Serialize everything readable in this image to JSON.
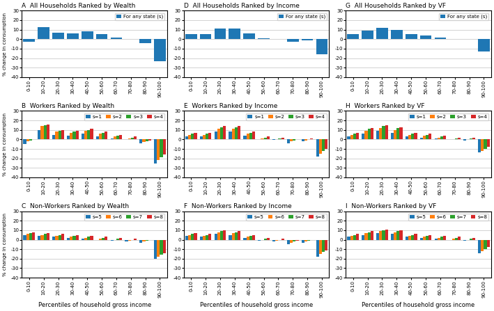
{
  "chart_data": [
    {
      "type": "bar",
      "title": "A  All Households Ranked by Wealth",
      "categories": [
        "0-10",
        "10-20",
        "20-30",
        "30-40",
        "40-50",
        "50-60",
        "60-70",
        "70-80",
        "80-90",
        "90-100"
      ],
      "series": [
        {
          "name": "For any state (s)",
          "values": [
            -3,
            13,
            7,
            6,
            8,
            5,
            2,
            0.5,
            -4,
            -23
          ]
        }
      ],
      "ylabel": "% change in consumption",
      "ylim": [
        -40,
        30
      ],
      "yticks": [
        -40,
        -30,
        -20,
        -10,
        0,
        10,
        20,
        30
      ],
      "grid": true,
      "legend": "upper right"
    },
    {
      "type": "bar",
      "title": "D  All Households Ranked by Income",
      "categories": [
        "0-10",
        "10-20",
        "20-30",
        "30-40",
        "40-50",
        "50-60",
        "60-70",
        "70-80",
        "80-90",
        "90-100"
      ],
      "series": [
        {
          "name": "For any state (s)",
          "values": [
            5,
            5,
            11,
            11,
            6,
            1,
            0.5,
            -3,
            -1,
            -16
          ]
        }
      ],
      "ylim": [
        -40,
        30
      ],
      "yticks": [
        -40,
        -30,
        -20,
        -10,
        0,
        10,
        20,
        30
      ],
      "grid": true,
      "legend": "upper right"
    },
    {
      "type": "bar",
      "title": "G  All Households Ranked by VF",
      "categories": [
        "0-10",
        "10-20",
        "20-30",
        "30-40",
        "40-50",
        "50-60",
        "60-70",
        "70-80",
        "80-90",
        "90-100"
      ],
      "series": [
        {
          "name": "For any state (s)",
          "values": [
            5,
            9,
            12,
            10,
            5,
            4,
            2,
            0.5,
            0,
            -13
          ]
        }
      ],
      "ylim": [
        -40,
        30
      ],
      "yticks": [
        -40,
        -30,
        -20,
        -10,
        0,
        10,
        20,
        30
      ],
      "grid": true,
      "legend": "upper right"
    },
    {
      "type": "bar",
      "title": "B  Workers Ranked by Wealth",
      "categories": [
        "0-10",
        "10-20",
        "20-30",
        "30-40",
        "40-50",
        "50-60",
        "60-70",
        "70-80",
        "80-90",
        "90-100"
      ],
      "series": [
        {
          "name": "s=1",
          "values": [
            -5,
            10,
            5,
            4,
            6,
            3,
            1,
            0.5,
            -4,
            -25
          ]
        },
        {
          "name": "s=2",
          "values": [
            -2,
            14,
            8,
            7,
            9,
            6,
            3,
            1,
            -3,
            -22
          ]
        },
        {
          "name": "s=3",
          "values": [
            -1,
            15,
            9,
            8,
            10,
            7,
            4,
            2,
            -2,
            -19
          ]
        },
        {
          "name": "s=4",
          "values": [
            0,
            16,
            10,
            9,
            11,
            8,
            5,
            3,
            -1,
            -16
          ]
        }
      ],
      "ylabel": "% change in consumption",
      "ylim": [
        -40,
        30
      ],
      "yticks": [
        -40,
        -30,
        -20,
        -10,
        0,
        10,
        20,
        30
      ],
      "grid": true,
      "legend": "upper right"
    },
    {
      "type": "bar",
      "title": "E  Workers Ranked by Income",
      "categories": [
        "0-10",
        "10-20",
        "20-30",
        "30-40",
        "40-50",
        "50-60",
        "60-70",
        "70-80",
        "80-90",
        "90-100"
      ],
      "series": [
        {
          "name": "s=1",
          "values": [
            3,
            3,
            8,
            8,
            4,
            0,
            -0.5,
            -4,
            -2,
            -18
          ]
        },
        {
          "name": "s=2",
          "values": [
            5,
            5,
            11,
            11,
            6,
            1,
            0.5,
            -2,
            -1,
            -15
          ]
        },
        {
          "name": "s=3",
          "values": [
            6,
            6,
            13,
            13,
            7,
            2,
            1,
            -1,
            0,
            -12
          ]
        },
        {
          "name": "s=4",
          "values": [
            7,
            7,
            14,
            14,
            8,
            3,
            2,
            0,
            1,
            -10
          ]
        }
      ],
      "ylim": [
        -40,
        30
      ],
      "yticks": [
        -40,
        -30,
        -20,
        -10,
        0,
        10,
        20,
        30
      ],
      "grid": true,
      "legend": "upper right"
    },
    {
      "type": "bar",
      "title": "H  Workers Ranked by VF",
      "categories": [
        "0-10",
        "10-20",
        "20-30",
        "30-40",
        "40-50",
        "50-60",
        "60-70",
        "70-80",
        "80-90",
        "90-100"
      ],
      "series": [
        {
          "name": "s=1",
          "values": [
            3,
            6,
            9,
            7,
            3,
            2,
            1,
            0,
            -1,
            -14
          ]
        },
        {
          "name": "s=2",
          "values": [
            5,
            9,
            12,
            10,
            5,
            4,
            2,
            0.5,
            0,
            -12
          ]
        },
        {
          "name": "s=3",
          "values": [
            6,
            11,
            14,
            12,
            6,
            5,
            3,
            1,
            1,
            -10
          ]
        },
        {
          "name": "s=4",
          "values": [
            7,
            12,
            15,
            13,
            7,
            6,
            4,
            2,
            2,
            -8
          ]
        }
      ],
      "ylim": [
        -40,
        30
      ],
      "yticks": [
        -40,
        -30,
        -20,
        -10,
        0,
        10,
        20,
        30
      ],
      "grid": true,
      "legend": "upper right"
    },
    {
      "type": "bar",
      "title": "C  Non-Workers Ranked by Wealth",
      "categories": [
        "0-10",
        "10-20",
        "20-30",
        "30-40",
        "40-50",
        "50-60",
        "60-70",
        "70-80",
        "80-90",
        "90-100"
      ],
      "series": [
        {
          "name": "s=5",
          "values": [
            5,
            4,
            3,
            2,
            1,
            0,
            -1,
            -2,
            -3,
            -20
          ]
        },
        {
          "name": "s=6",
          "values": [
            6,
            5,
            4,
            3,
            2,
            1,
            0,
            -1,
            -2,
            -18
          ]
        },
        {
          "name": "s=7",
          "values": [
            7,
            6,
            5,
            4,
            3,
            2,
            1,
            0,
            -1,
            -16
          ]
        },
        {
          "name": "s=8",
          "values": [
            8,
            7,
            6,
            5,
            4,
            3,
            2,
            1,
            0,
            -14
          ]
        }
      ],
      "xlabel": "Percentiles of household gross income",
      "ylabel": "% change in consumption",
      "ylim": [
        -40,
        30
      ],
      "yticks": [
        -40,
        -30,
        -20,
        -10,
        0,
        10,
        20,
        30
      ],
      "grid": true,
      "legend": "upper right"
    },
    {
      "type": "bar",
      "title": "F  Non-Workers Ranked by Income",
      "categories": [
        "0-10",
        "10-20",
        "20-30",
        "30-40",
        "40-50",
        "50-60",
        "60-70",
        "70-80",
        "80-90",
        "90-100"
      ],
      "series": [
        {
          "name": "s=5",
          "values": [
            4,
            3,
            6,
            5,
            2,
            -1,
            -2,
            -5,
            -3,
            -18
          ]
        },
        {
          "name": "s=6",
          "values": [
            5,
            4,
            8,
            7,
            3,
            0,
            -1,
            -3,
            -2,
            -15
          ]
        },
        {
          "name": "s=7",
          "values": [
            6,
            5,
            9,
            8,
            4,
            1,
            0,
            -2,
            -1,
            -13
          ]
        },
        {
          "name": "s=8",
          "values": [
            7,
            6,
            10,
            9,
            5,
            2,
            1,
            -1,
            0,
            -11
          ]
        }
      ],
      "xlabel": "Percentiles of household gross income",
      "ylim": [
        -40,
        30
      ],
      "yticks": [
        -40,
        -30,
        -20,
        -10,
        0,
        10,
        20,
        30
      ],
      "grid": true,
      "legend": "upper right"
    },
    {
      "type": "bar",
      "title": "I  Non-Workers Ranked by VF",
      "categories": [
        "0-10",
        "10-20",
        "20-30",
        "30-40",
        "40-50",
        "50-60",
        "60-70",
        "70-80",
        "80-90",
        "90-100"
      ],
      "series": [
        {
          "name": "s=5",
          "values": [
            3,
            5,
            7,
            6,
            3,
            2,
            1,
            0,
            -1,
            -14
          ]
        },
        {
          "name": "s=6",
          "values": [
            4,
            7,
            9,
            8,
            4,
            3,
            2,
            1,
            0,
            -12
          ]
        },
        {
          "name": "s=7",
          "values": [
            5,
            8,
            10,
            9,
            5,
            4,
            3,
            2,
            1,
            -10
          ]
        },
        {
          "name": "s=8",
          "values": [
            6,
            9,
            11,
            10,
            6,
            5,
            4,
            3,
            2,
            -8
          ]
        }
      ],
      "xlabel": "Percentiles of household gross income",
      "ylim": [
        -40,
        30
      ],
      "yticks": [
        -40,
        -30,
        -20,
        -10,
        0,
        10,
        20,
        30
      ],
      "grid": true,
      "legend": "upper right"
    }
  ]
}
